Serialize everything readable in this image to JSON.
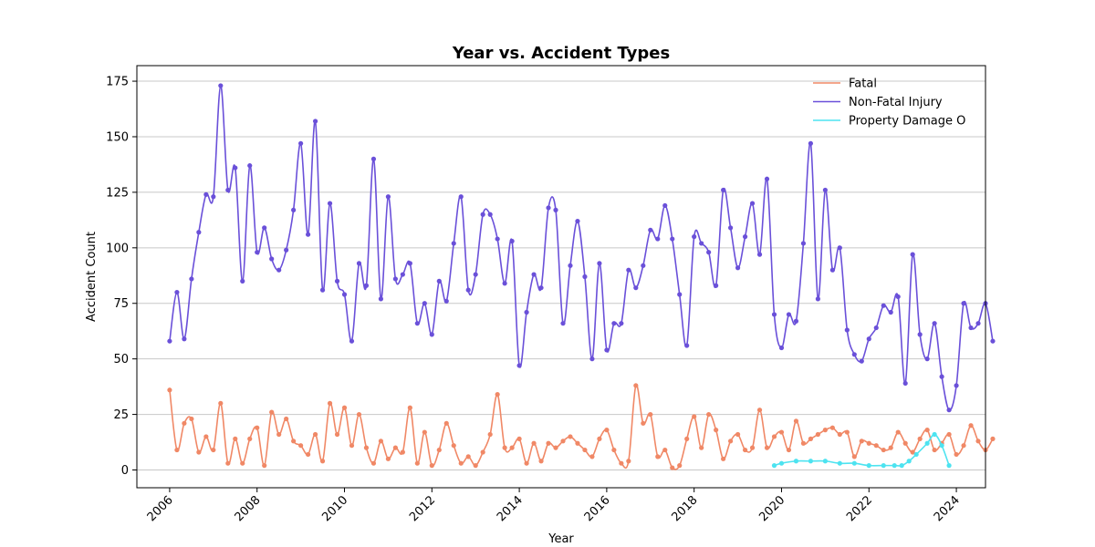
{
  "chart_data": {
    "type": "line",
    "title": "Year vs. Accident Types",
    "xlabel": "Year",
    "ylabel": "Accident Count",
    "xlim": [
      "2005-04-01",
      "2024-09-01"
    ],
    "ylim": [
      -8,
      182
    ],
    "x_ticks": [
      "2006",
      "2008",
      "2010",
      "2012",
      "2014",
      "2016",
      "2018",
      "2020",
      "2022",
      "2024"
    ],
    "y_ticks": [
      0,
      25,
      50,
      75,
      100,
      125,
      150,
      175
    ],
    "grid": "horizontal",
    "legend_position": "top-right",
    "series": [
      {
        "name": "Fatal",
        "color": "#f08866",
        "points": [
          [
            "2006-01",
            36
          ],
          [
            "2006-03",
            9
          ],
          [
            "2006-05",
            21
          ],
          [
            "2006-07",
            23
          ],
          [
            "2006-09",
            8
          ],
          [
            "2006-11",
            15
          ],
          [
            "2007-01",
            9
          ],
          [
            "2007-03",
            30
          ],
          [
            "2007-05",
            3
          ],
          [
            "2007-07",
            14
          ],
          [
            "2007-09",
            3
          ],
          [
            "2007-11",
            14
          ],
          [
            "2008-01",
            19
          ],
          [
            "2008-03",
            2
          ],
          [
            "2008-05",
            26
          ],
          [
            "2008-07",
            16
          ],
          [
            "2008-09",
            23
          ],
          [
            "2008-11",
            13
          ],
          [
            "2009-01",
            11
          ],
          [
            "2009-03",
            7
          ],
          [
            "2009-05",
            16
          ],
          [
            "2009-07",
            4
          ],
          [
            "2009-09",
            30
          ],
          [
            "2009-11",
            16
          ],
          [
            "2010-01",
            28
          ],
          [
            "2010-03",
            11
          ],
          [
            "2010-05",
            25
          ],
          [
            "2010-07",
            10
          ],
          [
            "2010-09",
            3
          ],
          [
            "2010-11",
            13
          ],
          [
            "2011-01",
            5
          ],
          [
            "2011-03",
            10
          ],
          [
            "2011-05",
            8
          ],
          [
            "2011-07",
            28
          ],
          [
            "2011-09",
            3
          ],
          [
            "2011-11",
            17
          ],
          [
            "2012-01",
            2
          ],
          [
            "2012-03",
            9
          ],
          [
            "2012-05",
            21
          ],
          [
            "2012-07",
            11
          ],
          [
            "2012-09",
            3
          ],
          [
            "2012-11",
            6
          ],
          [
            "2013-01",
            2
          ],
          [
            "2013-03",
            8
          ],
          [
            "2013-05",
            16
          ],
          [
            "2013-07",
            34
          ],
          [
            "2013-09",
            10
          ],
          [
            "2013-11",
            10
          ],
          [
            "2014-01",
            14
          ],
          [
            "2014-03",
            3
          ],
          [
            "2014-05",
            12
          ],
          [
            "2014-07",
            4
          ],
          [
            "2014-09",
            12
          ],
          [
            "2014-11",
            10
          ],
          [
            "2015-01",
            13
          ],
          [
            "2015-03",
            15
          ],
          [
            "2015-05",
            12
          ],
          [
            "2015-07",
            9
          ],
          [
            "2015-09",
            6
          ],
          [
            "2015-11",
            14
          ],
          [
            "2016-01",
            18
          ],
          [
            "2016-03",
            9
          ],
          [
            "2016-05",
            3
          ],
          [
            "2016-07",
            4
          ],
          [
            "2016-09",
            38
          ],
          [
            "2016-11",
            21
          ],
          [
            "2017-01",
            25
          ],
          [
            "2017-03",
            6
          ],
          [
            "2017-05",
            9
          ],
          [
            "2017-07",
            1
          ],
          [
            "2017-09",
            2
          ],
          [
            "2017-11",
            14
          ],
          [
            "2018-01",
            24
          ],
          [
            "2018-03",
            10
          ],
          [
            "2018-05",
            25
          ],
          [
            "2018-07",
            18
          ],
          [
            "2018-09",
            5
          ],
          [
            "2018-11",
            13
          ],
          [
            "2019-01",
            16
          ],
          [
            "2019-03",
            9
          ],
          [
            "2019-05",
            10
          ],
          [
            "2019-07",
            27
          ],
          [
            "2019-09",
            10
          ],
          [
            "2019-11",
            15
          ],
          [
            "2020-01",
            17
          ],
          [
            "2020-03",
            9
          ],
          [
            "2020-05",
            22
          ],
          [
            "2020-07",
            12
          ],
          [
            "2020-09",
            14
          ],
          [
            "2020-11",
            16
          ],
          [
            "2021-01",
            18
          ],
          [
            "2021-03",
            19
          ],
          [
            "2021-05",
            16
          ],
          [
            "2021-07",
            17
          ],
          [
            "2021-09",
            6
          ],
          [
            "2021-11",
            13
          ],
          [
            "2022-01",
            12
          ],
          [
            "2022-03",
            11
          ],
          [
            "2022-05",
            9
          ],
          [
            "2022-07",
            10
          ],
          [
            "2022-09",
            17
          ],
          [
            "2022-11",
            12
          ],
          [
            "2023-01",
            8
          ],
          [
            "2023-03",
            14
          ],
          [
            "2023-05",
            18
          ],
          [
            "2023-07",
            9
          ],
          [
            "2023-09",
            12
          ],
          [
            "2023-11",
            16
          ],
          [
            "2024-01",
            7
          ],
          [
            "2024-03",
            11
          ],
          [
            "2024-05",
            20
          ],
          [
            "2024-07",
            13
          ],
          [
            "2024-09",
            9
          ],
          [
            "2024-11",
            14
          ]
        ]
      },
      {
        "name": "Non-Fatal Injury",
        "color": "#6a50d9",
        "points": [
          [
            "2006-01",
            58
          ],
          [
            "2006-03",
            80
          ],
          [
            "2006-05",
            59
          ],
          [
            "2006-07",
            86
          ],
          [
            "2006-09",
            107
          ],
          [
            "2006-11",
            124
          ],
          [
            "2007-01",
            123
          ],
          [
            "2007-03",
            173
          ],
          [
            "2007-05",
            126
          ],
          [
            "2007-07",
            136
          ],
          [
            "2007-09",
            85
          ],
          [
            "2007-11",
            137
          ],
          [
            "2008-01",
            98
          ],
          [
            "2008-03",
            109
          ],
          [
            "2008-05",
            95
          ],
          [
            "2008-07",
            90
          ],
          [
            "2008-09",
            99
          ],
          [
            "2008-11",
            117
          ],
          [
            "2009-01",
            147
          ],
          [
            "2009-03",
            106
          ],
          [
            "2009-05",
            157
          ],
          [
            "2009-07",
            81
          ],
          [
            "2009-09",
            120
          ],
          [
            "2009-11",
            85
          ],
          [
            "2010-01",
            79
          ],
          [
            "2010-03",
            58
          ],
          [
            "2010-05",
            93
          ],
          [
            "2010-07",
            83
          ],
          [
            "2010-09",
            140
          ],
          [
            "2010-11",
            77
          ],
          [
            "2011-01",
            123
          ],
          [
            "2011-03",
            86
          ],
          [
            "2011-05",
            88
          ],
          [
            "2011-07",
            93
          ],
          [
            "2011-09",
            66
          ],
          [
            "2011-11",
            75
          ],
          [
            "2012-01",
            61
          ],
          [
            "2012-03",
            85
          ],
          [
            "2012-05",
            76
          ],
          [
            "2012-07",
            102
          ],
          [
            "2012-09",
            123
          ],
          [
            "2012-11",
            81
          ],
          [
            "2013-01",
            88
          ],
          [
            "2013-03",
            115
          ],
          [
            "2013-05",
            115
          ],
          [
            "2013-07",
            104
          ],
          [
            "2013-09",
            84
          ],
          [
            "2013-11",
            103
          ],
          [
            "2014-01",
            47
          ],
          [
            "2014-03",
            71
          ],
          [
            "2014-05",
            88
          ],
          [
            "2014-07",
            82
          ],
          [
            "2014-09",
            118
          ],
          [
            "2014-11",
            117
          ],
          [
            "2015-01",
            66
          ],
          [
            "2015-03",
            92
          ],
          [
            "2015-05",
            112
          ],
          [
            "2015-07",
            87
          ],
          [
            "2015-09",
            50
          ],
          [
            "2015-11",
            93
          ],
          [
            "2016-01",
            54
          ],
          [
            "2016-03",
            66
          ],
          [
            "2016-05",
            66
          ],
          [
            "2016-07",
            90
          ],
          [
            "2016-09",
            82
          ],
          [
            "2016-11",
            92
          ],
          [
            "2017-01",
            108
          ],
          [
            "2017-03",
            104
          ],
          [
            "2017-05",
            119
          ],
          [
            "2017-07",
            104
          ],
          [
            "2017-09",
            79
          ],
          [
            "2017-11",
            56
          ],
          [
            "2018-01",
            105
          ],
          [
            "2018-03",
            102
          ],
          [
            "2018-05",
            98
          ],
          [
            "2018-07",
            83
          ],
          [
            "2018-09",
            126
          ],
          [
            "2018-11",
            109
          ],
          [
            "2019-01",
            91
          ],
          [
            "2019-03",
            105
          ],
          [
            "2019-05",
            120
          ],
          [
            "2019-07",
            97
          ],
          [
            "2019-09",
            131
          ],
          [
            "2019-11",
            70
          ],
          [
            "2020-01",
            55
          ],
          [
            "2020-03",
            70
          ],
          [
            "2020-05",
            67
          ],
          [
            "2020-07",
            102
          ],
          [
            "2020-09",
            147
          ],
          [
            "2020-11",
            77
          ],
          [
            "2021-01",
            126
          ],
          [
            "2021-03",
            90
          ],
          [
            "2021-05",
            100
          ],
          [
            "2021-07",
            63
          ],
          [
            "2021-09",
            52
          ],
          [
            "2021-11",
            49
          ],
          [
            "2022-01",
            59
          ],
          [
            "2022-03",
            64
          ],
          [
            "2022-05",
            74
          ],
          [
            "2022-07",
            71
          ],
          [
            "2022-09",
            78
          ],
          [
            "2022-11",
            39
          ],
          [
            "2023-01",
            97
          ],
          [
            "2023-03",
            61
          ],
          [
            "2023-05",
            50
          ],
          [
            "2023-07",
            66
          ],
          [
            "2023-09",
            42
          ],
          [
            "2023-11",
            27
          ],
          [
            "2024-01",
            38
          ],
          [
            "2024-03",
            75
          ],
          [
            "2024-05",
            64
          ],
          [
            "2024-07",
            66
          ],
          [
            "2024-09",
            75
          ],
          [
            "2024-11",
            58
          ]
        ]
      },
      {
        "name": "Property Damage O",
        "color": "#4de3f0",
        "points": [
          [
            "2019-11",
            2
          ],
          [
            "2020-01",
            3
          ],
          [
            "2020-05",
            4
          ],
          [
            "2020-09",
            4
          ],
          [
            "2021-01",
            4
          ],
          [
            "2021-05",
            3
          ],
          [
            "2021-09",
            3
          ],
          [
            "2022-01",
            2
          ],
          [
            "2022-05",
            2
          ],
          [
            "2022-08",
            2
          ],
          [
            "2022-10",
            2
          ],
          [
            "2022-12",
            4
          ],
          [
            "2023-02",
            7
          ],
          [
            "2023-05",
            12
          ],
          [
            "2023-07",
            16
          ],
          [
            "2023-09",
            11
          ],
          [
            "2023-11",
            2
          ]
        ]
      }
    ]
  }
}
